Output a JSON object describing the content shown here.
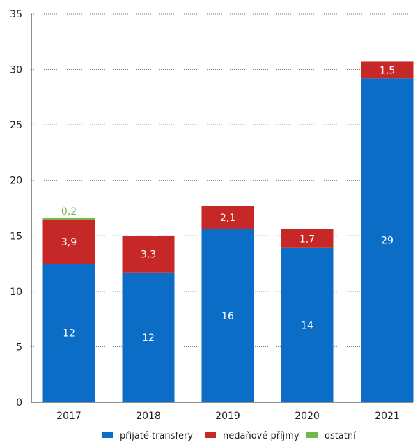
{
  "chart_data": {
    "type": "bar",
    "stacked": true,
    "categories": [
      "2017",
      "2018",
      "2019",
      "2020",
      "2021"
    ],
    "series": [
      {
        "name": "přijaté transfery",
        "values": [
          12.5,
          11.7,
          15.6,
          13.9,
          29.2
        ],
        "labels": [
          "12",
          "12",
          "16",
          "14",
          "29"
        ],
        "color": "#0b6dc6"
      },
      {
        "name": "nedaňové příjmy",
        "values": [
          3.9,
          3.3,
          2.1,
          1.7,
          1.5
        ],
        "labels": [
          "3,9",
          "3,3",
          "2,1",
          "1,7",
          "1,5"
        ],
        "color": "#c62828"
      },
      {
        "name": "ostatní",
        "values": [
          0.2,
          0.0,
          0.0,
          0.0,
          0.0
        ],
        "labels": [
          "0,2",
          "",
          "",
          "",
          ""
        ],
        "color": "#71b84a"
      }
    ],
    "y_ticks": [
      "0",
      "5",
      "10",
      "15",
      "20",
      "25",
      "30",
      "35"
    ],
    "ylim": [
      0,
      35
    ],
    "grid": true,
    "legend_position": "bottom"
  }
}
